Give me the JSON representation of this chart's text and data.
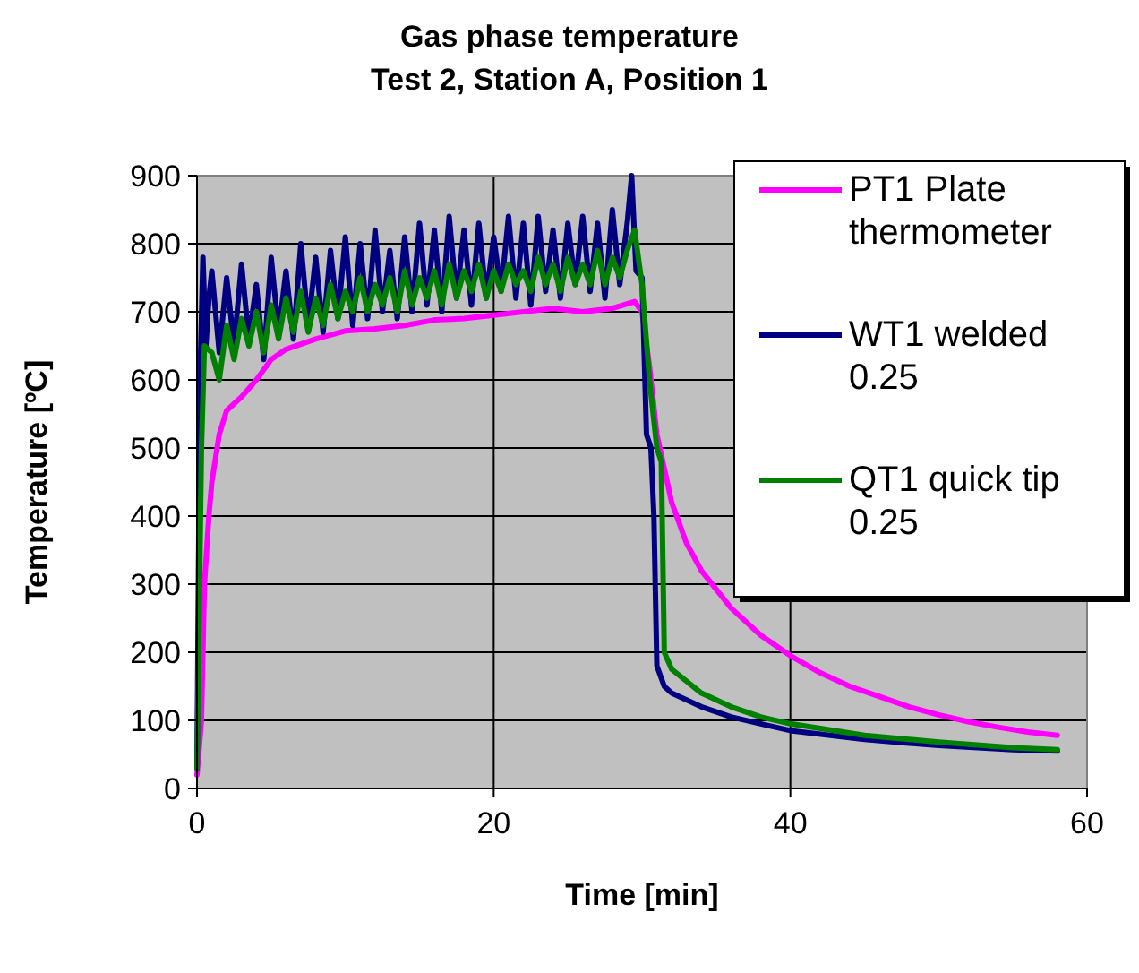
{
  "chart_data": {
    "type": "line",
    "title": "Gas phase temperature",
    "subtitle": "Test 2, Station A, Position 1",
    "xlabel": "Time [min]",
    "ylabel": "Temperature [ºC]",
    "xlim": [
      0,
      60
    ],
    "xticks": [
      0,
      20,
      40,
      60
    ],
    "ylim": [
      0,
      900
    ],
    "yticks": [
      0,
      100,
      200,
      300,
      400,
      500,
      600,
      700,
      800,
      900
    ],
    "grid": true,
    "legend": "right",
    "marker": "none",
    "line_style": "solid",
    "series": [
      {
        "name": "PT1 Plate thermometer",
        "color": "#ff00ff",
        "x": [
          0,
          0.3,
          0.5,
          0.8,
          1,
          1.5,
          2,
          3,
          4,
          5,
          6,
          8,
          10,
          12,
          14,
          16,
          18,
          20,
          22,
          24,
          26,
          28,
          29.5,
          30,
          30.5,
          31,
          32,
          33,
          34,
          36,
          38,
          40,
          42,
          44,
          46,
          48,
          50,
          52,
          54,
          56,
          58
        ],
        "values": [
          20,
          100,
          300,
          400,
          450,
          520,
          555,
          575,
          600,
          630,
          645,
          660,
          672,
          675,
          680,
          688,
          690,
          695,
          700,
          705,
          700,
          705,
          715,
          700,
          620,
          520,
          420,
          360,
          320,
          265,
          225,
          195,
          170,
          150,
          135,
          120,
          108,
          98,
          90,
          83,
          78
        ]
      },
      {
        "name": "WT1 welded 0.25",
        "color": "#000080",
        "x": [
          0,
          0.2,
          0.4,
          0.6,
          0.8,
          1,
          1.5,
          2,
          2.5,
          3,
          3.5,
          4,
          4.5,
          5,
          5.5,
          6,
          6.5,
          7,
          7.5,
          8,
          8.5,
          9,
          9.5,
          10,
          10.5,
          11,
          11.5,
          12,
          12.5,
          13,
          13.5,
          14,
          14.5,
          15,
          15.5,
          16,
          16.5,
          17,
          17.5,
          18,
          18.5,
          19,
          19.5,
          20,
          20.5,
          21,
          21.5,
          22,
          22.5,
          23,
          23.5,
          24,
          24.5,
          25,
          25.5,
          26,
          26.5,
          27,
          27.5,
          28,
          28.5,
          29,
          29.3,
          29.6,
          30,
          30.3,
          30.6,
          30.8,
          31,
          31.5,
          32,
          34,
          36,
          38,
          40,
          45,
          50,
          55,
          58
        ],
        "values": [
          30,
          600,
          780,
          650,
          720,
          760,
          640,
          750,
          650,
          770,
          660,
          740,
          630,
          780,
          670,
          760,
          660,
          800,
          680,
          780,
          670,
          790,
          690,
          810,
          680,
          800,
          690,
          820,
          700,
          790,
          690,
          810,
          700,
          830,
          710,
          820,
          700,
          840,
          720,
          820,
          710,
          830,
          720,
          810,
          730,
          840,
          720,
          830,
          710,
          840,
          730,
          820,
          720,
          830,
          740,
          840,
          730,
          830,
          720,
          850,
          740,
          830,
          900,
          760,
          750,
          520,
          500,
          400,
          180,
          150,
          140,
          120,
          105,
          95,
          85,
          72,
          63,
          57,
          55
        ]
      },
      {
        "name": "QT1 quick tip 0.25",
        "color": "#008000",
        "x": [
          0,
          0.3,
          0.5,
          1,
          1.5,
          2,
          2.5,
          3,
          3.5,
          4,
          4.5,
          5,
          5.5,
          6,
          6.5,
          7,
          7.5,
          8,
          8.5,
          9,
          9.5,
          10,
          10.5,
          11,
          11.5,
          12,
          12.5,
          13,
          13.5,
          14,
          14.5,
          15,
          15.5,
          16,
          16.5,
          17,
          17.5,
          18,
          18.5,
          19,
          19.5,
          20,
          20.5,
          21,
          21.5,
          22,
          22.5,
          23,
          23.5,
          24,
          24.5,
          25,
          25.5,
          26,
          26.5,
          27,
          27.5,
          28,
          28.5,
          29,
          29.5,
          30,
          30.5,
          31,
          31.3,
          31.5,
          32,
          34,
          36,
          38,
          40,
          45,
          50,
          55,
          58
        ],
        "values": [
          30,
          500,
          650,
          640,
          600,
          680,
          630,
          690,
          650,
          700,
          640,
          710,
          660,
          720,
          670,
          730,
          670,
          720,
          680,
          740,
          690,
          730,
          700,
          750,
          700,
          740,
          710,
          750,
          700,
          760,
          710,
          750,
          720,
          760,
          710,
          770,
          720,
          760,
          730,
          770,
          720,
          760,
          730,
          770,
          740,
          760,
          730,
          780,
          740,
          770,
          730,
          780,
          740,
          770,
          740,
          790,
          740,
          780,
          750,
          790,
          820,
          740,
          600,
          500,
          480,
          200,
          175,
          140,
          120,
          105,
          95,
          78,
          68,
          60,
          57
        ]
      }
    ]
  }
}
